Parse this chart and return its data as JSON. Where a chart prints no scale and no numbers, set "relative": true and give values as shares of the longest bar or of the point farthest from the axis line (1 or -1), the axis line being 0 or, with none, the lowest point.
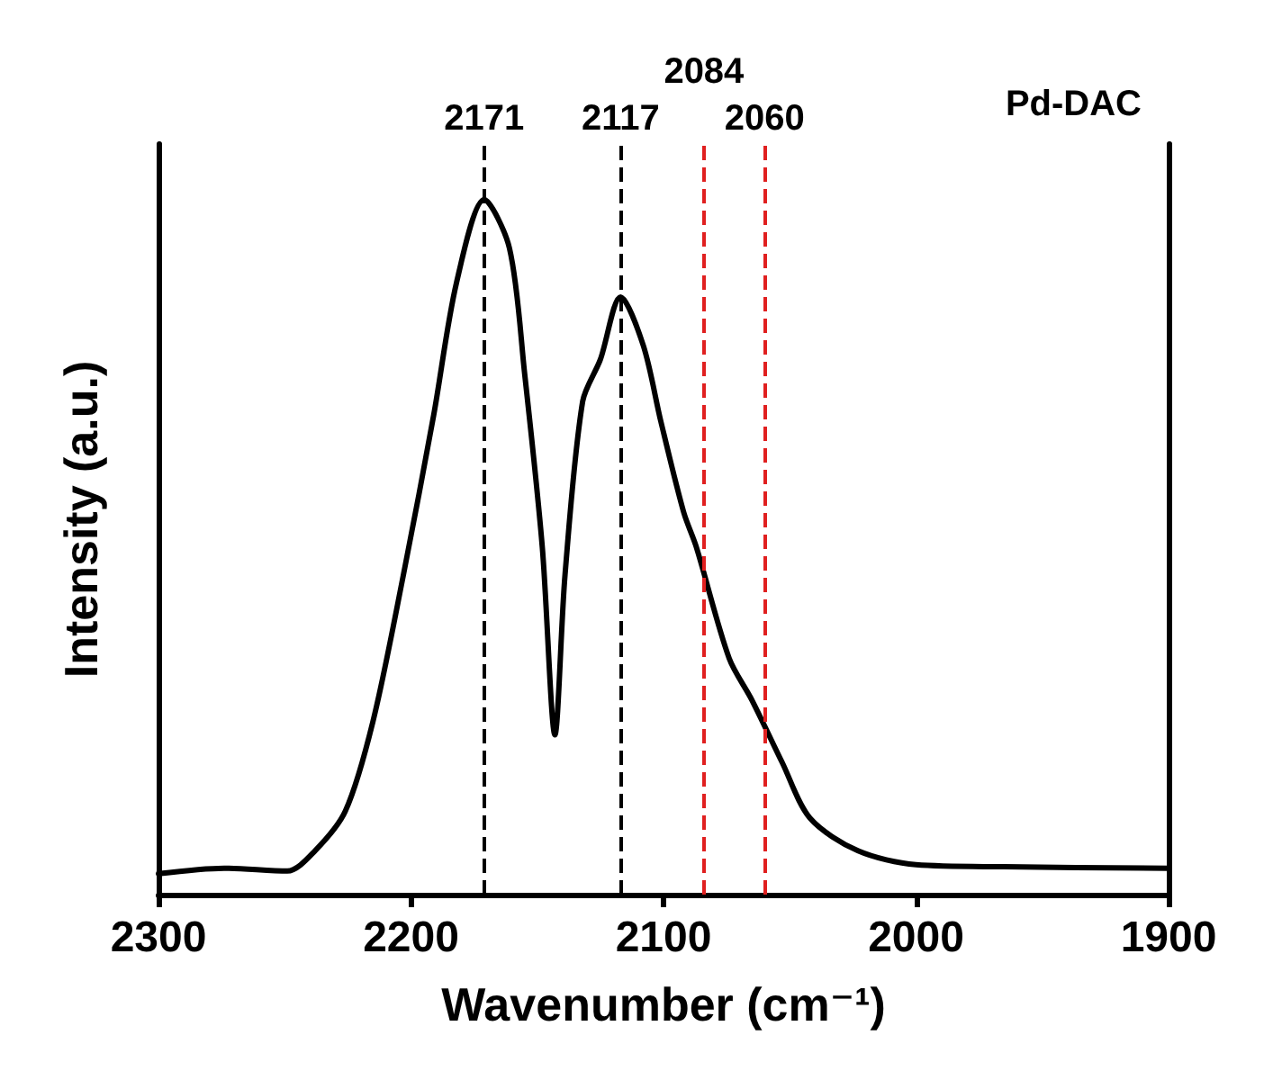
{
  "chart_data": {
    "type": "line",
    "relative": true,
    "xlabel": "Wavenumber (cm⁻¹)",
    "ylabel": "Intensity (a.u.)",
    "annotations": [
      "Pd-DAC"
    ],
    "xlim": [
      2300,
      1900
    ],
    "xticks": [
      2300,
      2200,
      2100,
      2000,
      1900
    ],
    "tick_labels": "x",
    "grid": false,
    "line_style": "solid",
    "marker": "none",
    "series": [
      {
        "color": "#000000",
        "x": [
          2300,
          2274,
          2249,
          2238,
          2226,
          2215,
          2203,
          2191,
          2182,
          2171,
          2161,
          2155,
          2148,
          2143,
          2139,
          2132,
          2125,
          2117,
          2108,
          2101,
          2092,
          2087,
          2074,
          2065,
          2053,
          2042,
          2023,
          2000,
          1965,
          1900
        ],
        "values": [
          0.03,
          0.038,
          0.034,
          0.063,
          0.12,
          0.25,
          0.46,
          0.69,
          0.88,
          1.0,
          0.93,
          0.75,
          0.5,
          0.23,
          0.46,
          0.71,
          0.77,
          0.86,
          0.79,
          0.68,
          0.55,
          0.5,
          0.34,
          0.28,
          0.19,
          0.11,
          0.063,
          0.043,
          0.04,
          0.038
        ]
      }
    ],
    "ref_lines": [
      {
        "axis": "x",
        "value": 2171,
        "label": "2171",
        "color": "#000000",
        "line_style": "dashed"
      },
      {
        "axis": "x",
        "value": 2117,
        "label": "2117",
        "color": "#000000",
        "line_style": "dashed"
      },
      {
        "axis": "x",
        "value": 2084,
        "label": "2084",
        "color": "#e02020",
        "line_style": "dashed"
      },
      {
        "axis": "x",
        "value": 2060,
        "label": "2060",
        "color": "#e02020",
        "line_style": "dashed"
      }
    ]
  }
}
